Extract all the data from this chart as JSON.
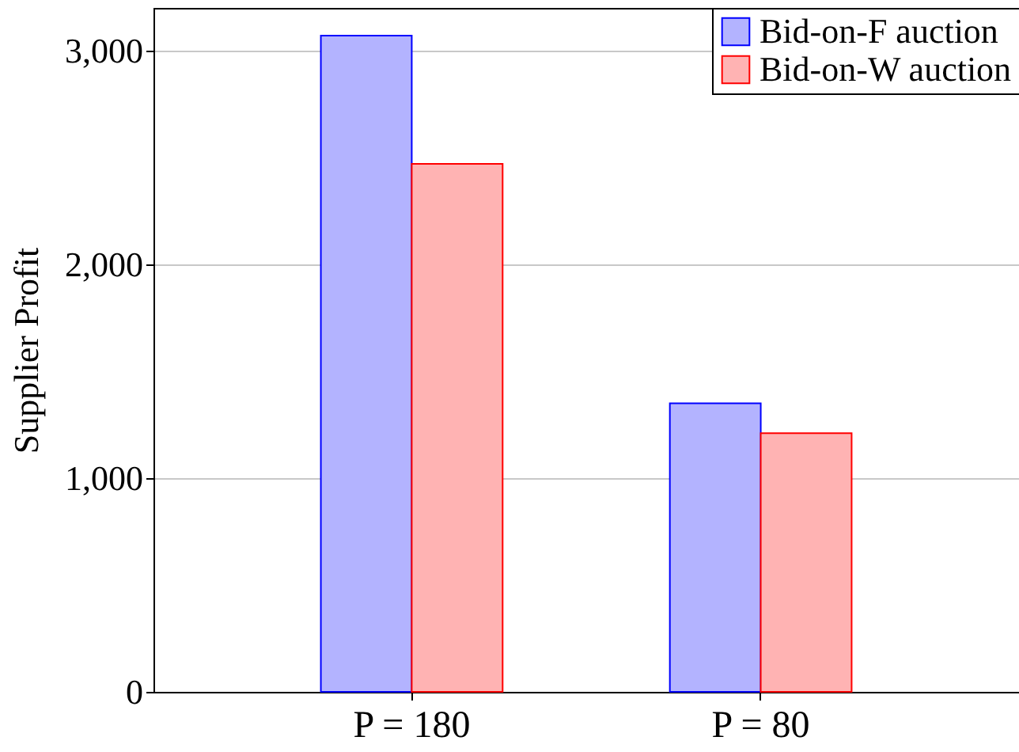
{
  "chart_data": {
    "type": "bar",
    "ylabel": "Supplier Profit",
    "categories": [
      "P = 180",
      "P = 80"
    ],
    "series": [
      {
        "name": "Bid-on-F auction",
        "color": "#b3b3ff",
        "values": [
          3070,
          1350
        ]
      },
      {
        "name": "Bid-on-W auction",
        "color": "#ffb3b3",
        "values": [
          2470,
          1210
        ]
      }
    ],
    "ylim": [
      0,
      3200
    ],
    "yticks": [
      {
        "value": 0,
        "label": "0"
      },
      {
        "value": 1000,
        "label": "1,000"
      },
      {
        "value": 2000,
        "label": "2,000"
      },
      {
        "value": 3000,
        "label": "3,000"
      }
    ],
    "grid": "y",
    "legend": "top right"
  }
}
